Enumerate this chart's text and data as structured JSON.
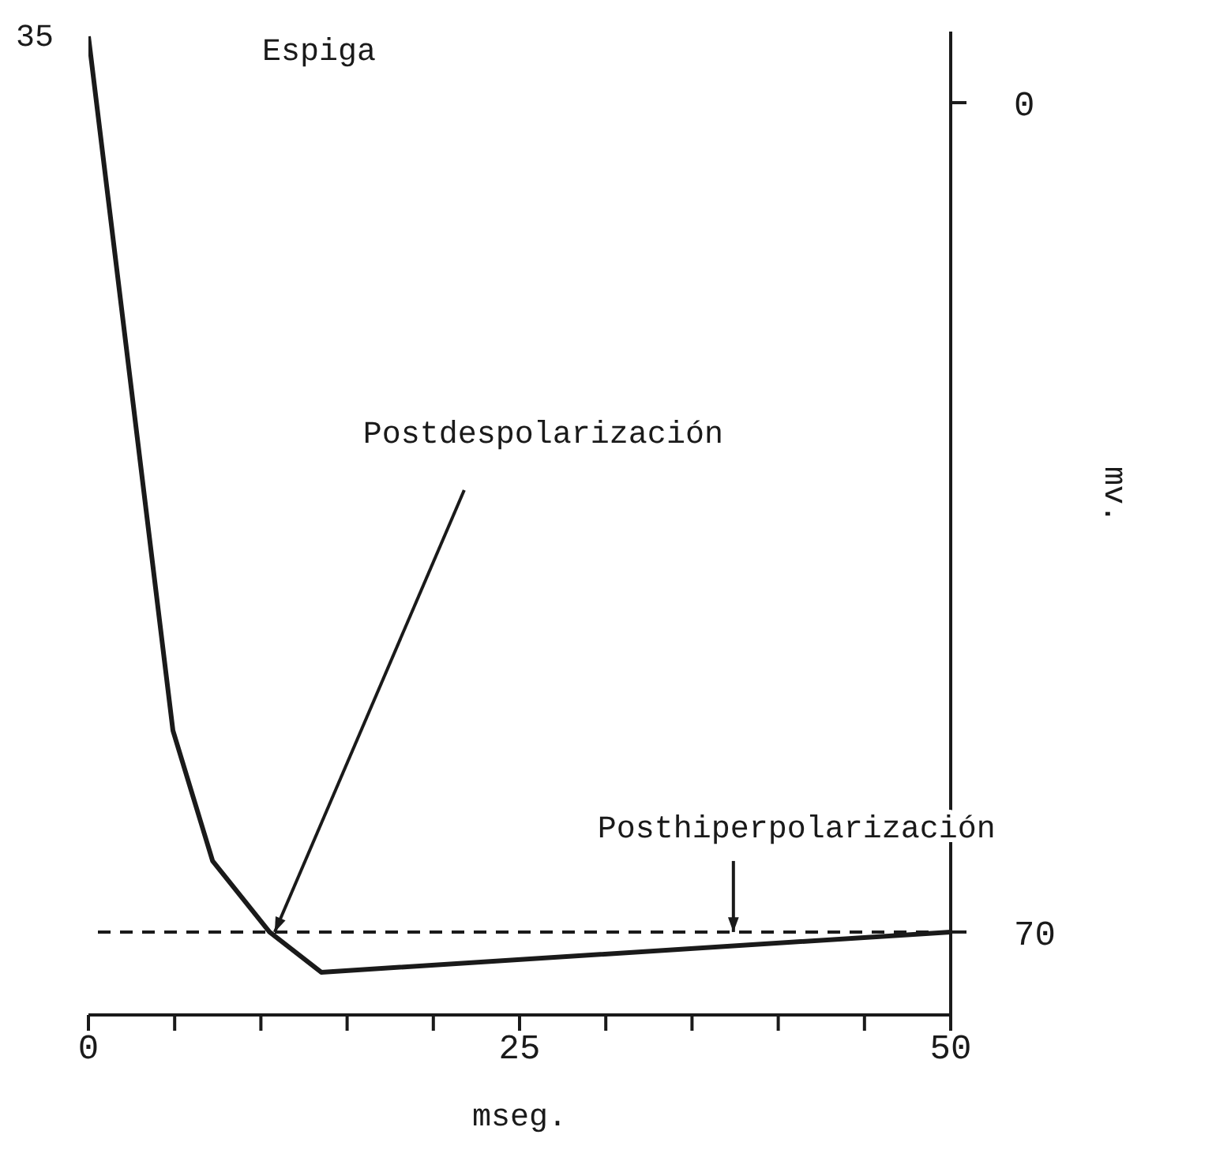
{
  "chart_data": {
    "type": "line",
    "xlabel": "mseg.",
    "ylabel": "mv.",
    "x": [
      0,
      4.9,
      7.2,
      10.5,
      13.5,
      50
    ],
    "series": [
      {
        "color": "#1a1a1a",
        "values": [
          5.6,
          -53,
          -64,
          -70,
          -73.4,
          -70
        ]
      }
    ],
    "xlim": [
      0,
      50
    ],
    "xticks": [
      0,
      {
        "value": 5,
        "label": null
      },
      {
        "value": 10,
        "label": null
      },
      {
        "value": 15,
        "label": null
      },
      {
        "value": 20,
        "label": null
      },
      25,
      {
        "value": 30,
        "label": null
      },
      {
        "value": 35,
        "label": null
      },
      {
        "value": 40,
        "label": null
      },
      {
        "value": 45,
        "label": null
      },
      50
    ],
    "ylim": [
      -77,
      6
    ],
    "yticks": [
      0,
      {
        "value": -70,
        "label": "70"
      }
    ],
    "ref_lines": [
      {
        "axis": "y",
        "value": -70,
        "label": null,
        "color": "#1a1a1a",
        "line_style": "dashed"
      }
    ],
    "annotations": [
      {
        "text": "35",
        "x": 0,
        "y": 5.6
      },
      "Espiga",
      {
        "text": "Postdespolarización",
        "x": 10.8,
        "y": -70
      },
      {
        "text": "Posthiperpolarización",
        "x": 37.4,
        "y": -70
      }
    ],
    "grid": false,
    "legend": false,
    "marker": "none",
    "line_style": "solid"
  }
}
